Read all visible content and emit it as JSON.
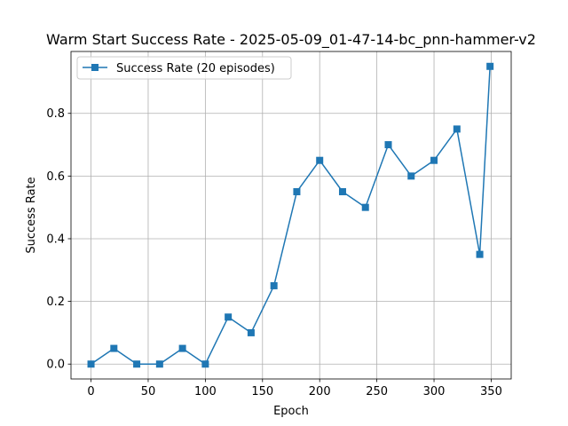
{
  "chart_data": {
    "type": "line",
    "title": "Warm Start Success Rate - 2025-05-09_01-47-14-bc_pnn-hammer-v2",
    "xlabel": "Epoch",
    "ylabel": "Success Rate",
    "xlim": [
      -17.5,
      367.5
    ],
    "ylim": [
      -0.0475,
      0.9975
    ],
    "xticks": [
      0,
      50,
      100,
      150,
      200,
      250,
      300,
      350
    ],
    "xtick_labels": [
      "0",
      "50",
      "100",
      "150",
      "200",
      "250",
      "300",
      "350"
    ],
    "yticks": [
      0.0,
      0.2,
      0.4,
      0.6,
      0.8
    ],
    "ytick_labels": [
      "0.0",
      "0.2",
      "0.4",
      "0.6",
      "0.8"
    ],
    "grid": true,
    "legend_position": "top-left",
    "marker": "square",
    "color": "#1f77b4",
    "series": [
      {
        "name": "Success Rate (20 episodes)",
        "x": [
          0,
          20,
          40,
          60,
          80,
          100,
          120,
          140,
          160,
          180,
          200,
          220,
          240,
          260,
          280,
          300,
          320,
          340,
          349
        ],
        "y": [
          0.0,
          0.05,
          0.0,
          0.0,
          0.05,
          0.0,
          0.15,
          0.1,
          0.25,
          0.55,
          0.65,
          0.55,
          0.5,
          0.7,
          0.6,
          0.65,
          0.75,
          0.35,
          0.95
        ]
      }
    ]
  }
}
